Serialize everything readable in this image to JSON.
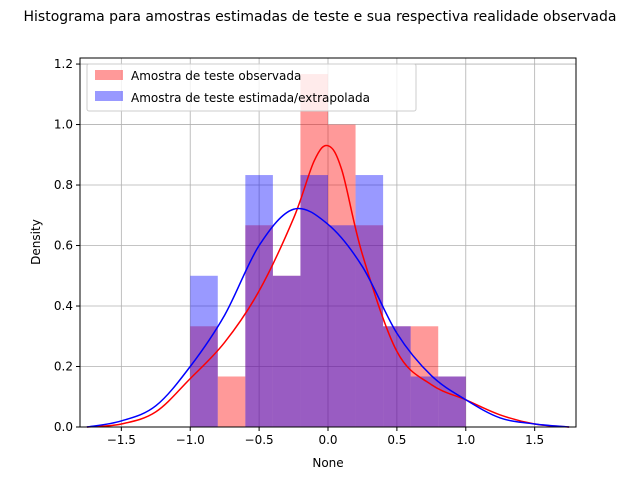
{
  "chart_data": {
    "type": "bar",
    "title": "Histograma para amostras estimadas de teste e sua respectiva  realidade observada",
    "xlabel": "None",
    "ylabel": "Density",
    "xlim": [
      -1.8,
      1.8
    ],
    "ylim": [
      0,
      1.22
    ],
    "x_ticks": [
      -1.5,
      -1.0,
      -0.5,
      0.0,
      0.5,
      1.0,
      1.5
    ],
    "x_tick_labels": [
      "−1.5",
      "−1.0",
      "−0.5",
      "0.0",
      "0.5",
      "1.0",
      "1.5"
    ],
    "y_ticks": [
      0.0,
      0.2,
      0.4,
      0.6,
      0.8,
      1.0,
      1.2
    ],
    "y_tick_labels": [
      "0.0",
      "0.2",
      "0.4",
      "0.6",
      "0.8",
      "1.0",
      "1.2"
    ],
    "grid": true,
    "legend_position": "top-left",
    "series": [
      {
        "name": "Amostra de teste observada",
        "color": "#ff0000",
        "bin_edges": [
          -1.0,
          -0.8,
          -0.6,
          -0.4,
          -0.2,
          0.0,
          0.2,
          0.4,
          0.6,
          0.8,
          1.0
        ],
        "values": [
          0.333,
          0.167,
          0.667,
          0.5,
          1.167,
          1.0,
          0.667,
          0.333,
          0.333,
          0.167
        ],
        "kde_x": [
          -1.75,
          -1.5,
          -1.25,
          -1.0,
          -0.75,
          -0.5,
          -0.25,
          -0.1,
          0.0,
          0.1,
          0.25,
          0.5,
          0.75,
          1.0,
          1.25,
          1.5,
          1.75
        ],
        "kde_y": [
          0.0,
          0.01,
          0.05,
          0.16,
          0.28,
          0.45,
          0.69,
          0.88,
          0.93,
          0.85,
          0.57,
          0.25,
          0.14,
          0.09,
          0.04,
          0.01,
          0.0
        ]
      },
      {
        "name": "Amostra de teste estimada/extrapolada",
        "color": "#0000ff",
        "bin_edges": [
          -1.0,
          -0.8,
          -0.6,
          -0.4,
          -0.2,
          0.0,
          0.2,
          0.4,
          0.6,
          0.8,
          1.0
        ],
        "values": [
          0.5,
          0.0,
          0.833,
          0.5,
          0.833,
          0.667,
          0.833,
          0.333,
          0.167,
          0.167
        ],
        "kde_x": [
          -1.75,
          -1.5,
          -1.25,
          -1.0,
          -0.75,
          -0.5,
          -0.25,
          0.0,
          0.25,
          0.5,
          0.75,
          1.0,
          1.25,
          1.5,
          1.75
        ],
        "kde_y": [
          0.0,
          0.02,
          0.07,
          0.2,
          0.37,
          0.6,
          0.72,
          0.67,
          0.53,
          0.31,
          0.17,
          0.09,
          0.03,
          0.01,
          0.0
        ]
      }
    ]
  }
}
